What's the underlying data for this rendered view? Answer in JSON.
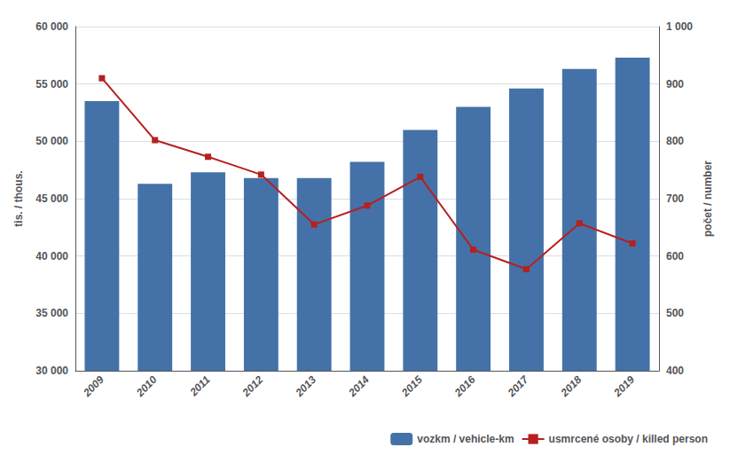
{
  "chart_data": {
    "type": "bar",
    "categories": [
      "2009",
      "2010",
      "2011",
      "2012",
      "2013",
      "2014",
      "2015",
      "2016",
      "2017",
      "2018",
      "2019"
    ],
    "series": [
      {
        "name": "vozkm / vehicle-km",
        "type": "bar",
        "color": "#4472a8",
        "values": [
          53500,
          46300,
          47300,
          46800,
          46800,
          48200,
          51000,
          53000,
          54600,
          56300,
          57300
        ]
      },
      {
        "name": "usmrcené osoby / killed person",
        "type": "line",
        "axis": "y2",
        "color": "#b52020",
        "marker": "square",
        "values": [
          910,
          802,
          773,
          742,
          655,
          688,
          738,
          611,
          577,
          657,
          622
        ]
      }
    ],
    "ylabel": "tis. / thous.",
    "y2label": "počet / number",
    "ylim": [
      30000,
      60000
    ],
    "yticks": [
      {
        "value": 30000,
        "label": "30 000"
      },
      {
        "value": 35000,
        "label": "35 000"
      },
      {
        "value": 40000,
        "label": "40 000"
      },
      {
        "value": 45000,
        "label": "45 000"
      },
      {
        "value": 50000,
        "label": "50 000"
      },
      {
        "value": 55000,
        "label": "55 000"
      },
      {
        "value": 60000,
        "label": "60 000"
      }
    ],
    "y2lim": [
      400,
      1000
    ],
    "y2ticks": [
      400,
      500,
      600,
      700,
      800,
      900,
      {
        "value": 1000,
        "label": "1 000"
      }
    ],
    "grid": true,
    "legend": "lower right"
  }
}
